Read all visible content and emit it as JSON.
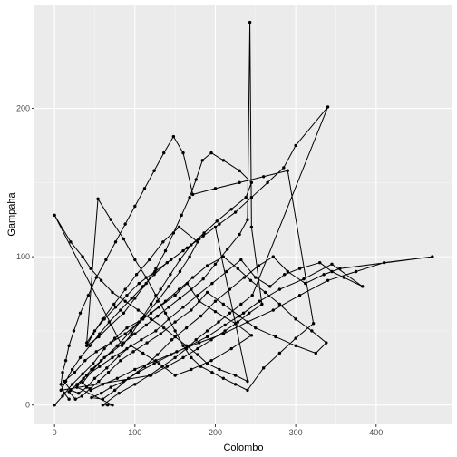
{
  "chart_data": {
    "type": "line",
    "xlabel": "Colombo",
    "ylabel": "Gampaha",
    "xlim": [
      -25,
      495
    ],
    "ylim": [
      -13,
      270
    ],
    "x_ticks": [
      0,
      100,
      200,
      300,
      400
    ],
    "y_ticks": [
      0,
      100,
      200
    ],
    "x_tick_labels": [
      "0",
      "100",
      "200",
      "300",
      "400"
    ],
    "y_tick_labels": [
      "0",
      "100",
      "200"
    ],
    "grid": true,
    "legend": "none",
    "colors": {
      "panel": "#ebebeb",
      "grid_major": "#ffffff",
      "grid_minor": "#f5f5f5",
      "series": "#000000"
    },
    "series": [
      {
        "points": [
          [
            0,
            0
          ],
          [
            10,
            6
          ],
          [
            22,
            14
          ],
          [
            35,
            21
          ],
          [
            48,
            28
          ],
          [
            62,
            38
          ],
          [
            75,
            45
          ],
          [
            90,
            52
          ],
          [
            110,
            58
          ],
          [
            130,
            66
          ],
          [
            150,
            74
          ],
          [
            165,
            82
          ],
          [
            180,
            70
          ],
          [
            200,
            63
          ],
          [
            225,
            55
          ],
          [
            245,
            47
          ],
          [
            220,
            38
          ],
          [
            195,
            30
          ],
          [
            170,
            24
          ],
          [
            150,
            20
          ],
          [
            130,
            28
          ],
          [
            110,
            35
          ],
          [
            95,
            40
          ],
          [
            80,
            33
          ],
          [
            65,
            25
          ],
          [
            50,
            18
          ],
          [
            40,
            12
          ],
          [
            30,
            8
          ],
          [
            20,
            10
          ],
          [
            12,
            16
          ],
          [
            25,
            22
          ],
          [
            38,
            30
          ],
          [
            52,
            36
          ],
          [
            70,
            42
          ],
          [
            88,
            48
          ],
          [
            105,
            56
          ],
          [
            120,
            62
          ],
          [
            138,
            70
          ],
          [
            155,
            78
          ],
          [
            172,
            86
          ],
          [
            190,
            94
          ],
          [
            210,
            100
          ],
          [
            228,
            92
          ],
          [
            244,
            84
          ],
          [
            262,
            76
          ],
          [
            280,
            68
          ],
          [
            300,
            58
          ],
          [
            320,
            50
          ],
          [
            338,
            42
          ],
          [
            325,
            35
          ],
          [
            300,
            40
          ],
          [
            275,
            46
          ],
          [
            250,
            52
          ],
          [
            230,
            60
          ],
          [
            210,
            68
          ],
          [
            190,
            76
          ],
          [
            170,
            64
          ],
          [
            150,
            56
          ],
          [
            132,
            48
          ],
          [
            115,
            42
          ],
          [
            98,
            36
          ],
          [
            82,
            30
          ],
          [
            67,
            22
          ],
          [
            55,
            16
          ],
          [
            44,
            11
          ],
          [
            34,
            6
          ],
          [
            26,
            4
          ],
          [
            18,
            9
          ],
          [
            28,
            14
          ],
          [
            40,
            20
          ],
          [
            56,
            26
          ],
          [
            72,
            32
          ],
          [
            90,
            38
          ],
          [
            108,
            44
          ],
          [
            126,
            50
          ],
          [
            142,
            58
          ],
          [
            160,
            66
          ],
          [
            178,
            74
          ],
          [
            196,
            82
          ],
          [
            214,
            90
          ],
          [
            232,
            98
          ],
          [
            250,
            86
          ],
          [
            268,
            80
          ],
          [
            286,
            88
          ],
          [
            305,
            92
          ],
          [
            330,
            96
          ],
          [
            345,
            90
          ],
          [
            360,
            86
          ],
          [
            383,
            80
          ],
          [
            345,
            95
          ],
          [
            310,
            85
          ],
          [
            280,
            78
          ],
          [
            255,
            70
          ],
          [
            235,
            62
          ],
          [
            212,
            54
          ],
          [
            190,
            46
          ],
          [
            168,
            40
          ],
          [
            145,
            34
          ],
          [
            124,
            28
          ],
          [
            104,
            22
          ],
          [
            86,
            16
          ],
          [
            70,
            12
          ],
          [
            58,
            8
          ],
          [
            46,
            5
          ],
          [
            60,
            4
          ],
          [
            75,
            10
          ],
          [
            92,
            18
          ],
          [
            112,
            26
          ],
          [
            128,
            34
          ],
          [
            146,
            44
          ],
          [
            164,
            52
          ],
          [
            182,
            60
          ],
          [
            200,
            70
          ],
          [
            218,
            78
          ],
          [
            236,
            86
          ],
          [
            254,
            94
          ],
          [
            272,
            100
          ],
          [
            290,
            90
          ],
          [
            312,
            82
          ],
          [
            335,
            88
          ],
          [
            355,
            92
          ],
          [
            470,
            100
          ],
          [
            410,
            96
          ],
          [
            375,
            90
          ],
          [
            340,
            84
          ],
          [
            305,
            74
          ],
          [
            272,
            64
          ],
          [
            240,
            56
          ],
          [
            210,
            48
          ],
          [
            180,
            42
          ],
          [
            152,
            36
          ],
          [
            126,
            30
          ],
          [
            100,
            24
          ],
          [
            78,
            18
          ],
          [
            60,
            14
          ],
          [
            45,
            10
          ],
          [
            35,
            15
          ],
          [
            48,
            24
          ],
          [
            62,
            32
          ],
          [
            78,
            40
          ],
          [
            95,
            50
          ],
          [
            112,
            60
          ],
          [
            128,
            70
          ],
          [
            142,
            80
          ],
          [
            156,
            90
          ],
          [
            168,
            100
          ],
          [
            178,
            110
          ],
          [
            155,
            120
          ],
          [
            135,
            110
          ],
          [
            118,
            98
          ],
          [
            102,
            88
          ],
          [
            88,
            78
          ],
          [
            74,
            68
          ],
          [
            60,
            58
          ],
          [
            48,
            48
          ],
          [
            40,
            40
          ],
          [
            55,
            46
          ],
          [
            70,
            54
          ],
          [
            86,
            62
          ],
          [
            100,
            72
          ],
          [
            114,
            82
          ],
          [
            126,
            92
          ],
          [
            138,
            104
          ],
          [
            148,
            116
          ],
          [
            158,
            128
          ],
          [
            168,
            140
          ],
          [
            176,
            152
          ],
          [
            184,
            165
          ],
          [
            195,
            170
          ],
          [
            210,
            165
          ],
          [
            230,
            158
          ],
          [
            245,
            150
          ],
          [
            238,
            140
          ],
          [
            220,
            132
          ],
          [
            202,
            124
          ],
          [
            186,
            116
          ],
          [
            170,
            108
          ],
          [
            156,
            98
          ],
          [
            144,
            88
          ],
          [
            132,
            78
          ],
          [
            120,
            68
          ],
          [
            108,
            58
          ],
          [
            96,
            48
          ],
          [
            84,
            40
          ],
          [
            0,
            128
          ],
          [
            20,
            110
          ],
          [
            35,
            100
          ],
          [
            45,
            92
          ],
          [
            58,
            84
          ],
          [
            72,
            76
          ],
          [
            88,
            70
          ],
          [
            104,
            64
          ],
          [
            120,
            58
          ],
          [
            136,
            52
          ],
          [
            150,
            46
          ],
          [
            164,
            40
          ],
          [
            178,
            34
          ],
          [
            190,
            28
          ],
          [
            205,
            24
          ],
          [
            225,
            20
          ],
          [
            240,
            16
          ],
          [
            200,
            120
          ],
          [
            180,
            112
          ],
          [
            160,
            104
          ],
          [
            140,
            96
          ],
          [
            124,
            88
          ],
          [
            110,
            80
          ],
          [
            96,
            72
          ],
          [
            82,
            64
          ],
          [
            68,
            56
          ],
          [
            56,
            48
          ],
          [
            44,
            40
          ],
          [
            32,
            32
          ],
          [
            22,
            24
          ],
          [
            14,
            16
          ],
          [
            8,
            10
          ],
          [
            120,
            20
          ],
          [
            140,
            26
          ],
          [
            160,
            32
          ],
          [
            178,
            38
          ],
          [
            195,
            44
          ],
          [
            212,
            50
          ],
          [
            228,
            56
          ],
          [
            242,
            62
          ],
          [
            258,
            68
          ],
          [
            245,
            120
          ],
          [
            243,
            258
          ],
          [
            240,
            125
          ],
          [
            230,
            115
          ],
          [
            215,
            105
          ],
          [
            200,
            95
          ],
          [
            185,
            85
          ],
          [
            170,
            78
          ],
          [
            156,
            72
          ],
          [
            142,
            66
          ],
          [
            128,
            60
          ],
          [
            114,
            54
          ],
          [
            100,
            48
          ],
          [
            86,
            42
          ],
          [
            72,
            36
          ],
          [
            58,
            30
          ],
          [
            46,
            24
          ],
          [
            36,
            18
          ],
          [
            28,
            12
          ],
          [
            72,
            0
          ],
          [
            66,
            0
          ],
          [
            60,
            0
          ],
          [
            80,
            8
          ],
          [
            100,
            14
          ],
          [
            118,
            20
          ],
          [
            134,
            26
          ],
          [
            150,
            32
          ],
          [
            164,
            38
          ],
          [
            176,
            44
          ],
          [
            190,
            50
          ],
          [
            204,
            56
          ],
          [
            218,
            62
          ],
          [
            232,
            68
          ],
          [
            246,
            74
          ],
          [
            340,
            201
          ],
          [
            300,
            175
          ],
          [
            285,
            160
          ],
          [
            265,
            150
          ],
          [
            245,
            140
          ],
          [
            225,
            130
          ],
          [
            205,
            122
          ],
          [
            185,
            114
          ],
          [
            165,
            106
          ],
          [
            145,
            98
          ],
          [
            125,
            90
          ],
          [
            105,
            82
          ],
          [
            90,
            74
          ],
          [
            76,
            66
          ],
          [
            62,
            58
          ],
          [
            50,
            50
          ],
          [
            40,
            42
          ],
          [
            54,
            139
          ],
          [
            70,
            125
          ],
          [
            86,
            112
          ],
          [
            100,
            98
          ],
          [
            114,
            86
          ],
          [
            126,
            74
          ],
          [
            138,
            62
          ],
          [
            150,
            50
          ],
          [
            160,
            40
          ],
          [
            170,
            32
          ],
          [
            182,
            26
          ],
          [
            196,
            22
          ],
          [
            210,
            18
          ],
          [
            225,
            14
          ],
          [
            240,
            10
          ],
          [
            260,
            25
          ],
          [
            280,
            35
          ],
          [
            300,
            45
          ],
          [
            322,
            55
          ],
          [
            290,
            158
          ],
          [
            260,
            154
          ],
          [
            230,
            150
          ],
          [
            200,
            146
          ],
          [
            172,
            142
          ],
          [
            160,
            170
          ],
          [
            148,
            181
          ],
          [
            136,
            170
          ],
          [
            124,
            158
          ],
          [
            112,
            146
          ],
          [
            100,
            134
          ],
          [
            88,
            122
          ],
          [
            76,
            110
          ],
          [
            64,
            98
          ],
          [
            52,
            86
          ],
          [
            42,
            74
          ],
          [
            32,
            62
          ],
          [
            24,
            50
          ],
          [
            18,
            40
          ],
          [
            14,
            30
          ],
          [
            10,
            22
          ],
          [
            8,
            14
          ],
          [
            12,
            8
          ],
          [
            18,
            4
          ]
        ]
      }
    ]
  }
}
